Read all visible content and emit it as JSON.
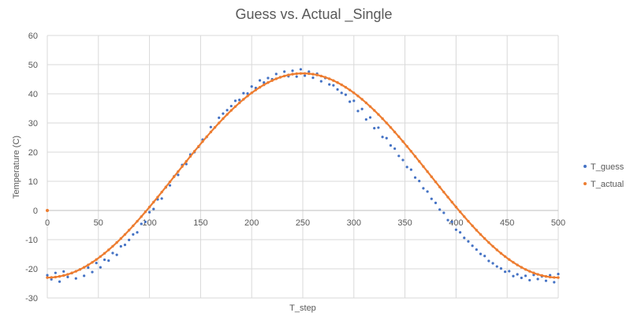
{
  "chart_data": {
    "type": "scatter",
    "title": "Guess vs. Actual _Single",
    "xlabel": "T_step",
    "ylabel": "Temperature (C)",
    "xlim": [
      0,
      500
    ],
    "ylim": [
      -30,
      60
    ],
    "xticks": [
      0,
      50,
      100,
      150,
      200,
      250,
      300,
      350,
      400,
      450,
      500
    ],
    "yticks": [
      -30,
      -20,
      -10,
      0,
      10,
      20,
      30,
      40,
      50,
      60
    ],
    "grid": true,
    "legend_position": "right",
    "series": [
      {
        "name": "T_guess",
        "color": "#4472C4",
        "marker": "dot",
        "x": [
          0,
          4,
          8,
          12,
          16,
          20,
          24,
          28,
          32,
          36,
          40,
          44,
          48,
          52,
          56,
          60,
          64,
          68,
          72,
          76,
          80,
          84,
          88,
          92,
          96,
          100,
          104,
          108,
          112,
          116,
          120,
          124,
          128,
          132,
          136,
          140,
          144,
          148,
          152,
          156,
          160,
          164,
          168,
          172,
          176,
          180,
          184,
          188,
          192,
          196,
          200,
          204,
          208,
          212,
          216,
          220,
          224,
          228,
          232,
          236,
          240,
          244,
          248,
          252,
          256,
          260,
          264,
          268,
          272,
          276,
          280,
          284,
          288,
          292,
          296,
          300,
          304,
          308,
          312,
          316,
          320,
          324,
          328,
          332,
          336,
          340,
          344,
          348,
          352,
          356,
          360,
          364,
          368,
          372,
          376,
          380,
          384,
          388,
          392,
          396,
          400,
          404,
          408,
          412,
          416,
          420,
          424,
          428,
          432,
          436,
          440,
          444,
          448,
          452,
          456,
          460,
          464,
          468,
          472,
          476,
          480,
          484,
          488,
          492,
          496,
          500
        ],
        "y": [
          -22.2,
          -23.6,
          -21.4,
          -24.4,
          -20.9,
          -22.8,
          -21.5,
          -23.3,
          -20.2,
          -22.4,
          -19.6,
          -21.1,
          -18.0,
          -19.5,
          -16.9,
          -17.2,
          -14.6,
          -15.2,
          -12.3,
          -11.8,
          -10.1,
          -8.2,
          -7.5,
          -4.6,
          -3.9,
          -0.6,
          0.5,
          3.8,
          4.1,
          7.9,
          8.6,
          11.7,
          12.2,
          15.6,
          15.9,
          19.2,
          20.0,
          21.8,
          24.3,
          25.2,
          28.6,
          28.5,
          31.8,
          33.2,
          34.4,
          35.8,
          37.6,
          37.9,
          40.2,
          40.1,
          42.5,
          42.0,
          44.6,
          43.9,
          45.4,
          45.0,
          46.8,
          45.7,
          47.6,
          46.0,
          47.9,
          45.9,
          48.4,
          46.2,
          47.6,
          45.5,
          46.9,
          44.3,
          45.4,
          43.2,
          42.9,
          41.5,
          40.3,
          39.7,
          37.3,
          37.6,
          34.1,
          34.8,
          31.2,
          31.9,
          28.2,
          28.4,
          25.2,
          24.8,
          22.3,
          21.2,
          18.7,
          17.3,
          14.9,
          14.0,
          11.3,
          10.1,
          7.6,
          6.5,
          4.0,
          2.6,
          0.3,
          -0.8,
          -3.3,
          -3.9,
          -6.6,
          -7.5,
          -9.4,
          -10.6,
          -12.1,
          -13.4,
          -14.9,
          -15.6,
          -17.3,
          -18.1,
          -19.2,
          -19.9,
          -21.0,
          -20.8,
          -22.5,
          -21.9,
          -23.1,
          -22.4,
          -23.9,
          -22.1,
          -23.5,
          -22.6,
          -24.1,
          -22.2,
          -24.6,
          -21.8
        ]
      },
      {
        "name": "T_actual",
        "color": "#ED7D31",
        "marker": "dot",
        "line": true,
        "amplitude": 35,
        "offset": 12,
        "period": 500,
        "extra_points": [
          [
            0,
            0
          ]
        ]
      }
    ]
  }
}
